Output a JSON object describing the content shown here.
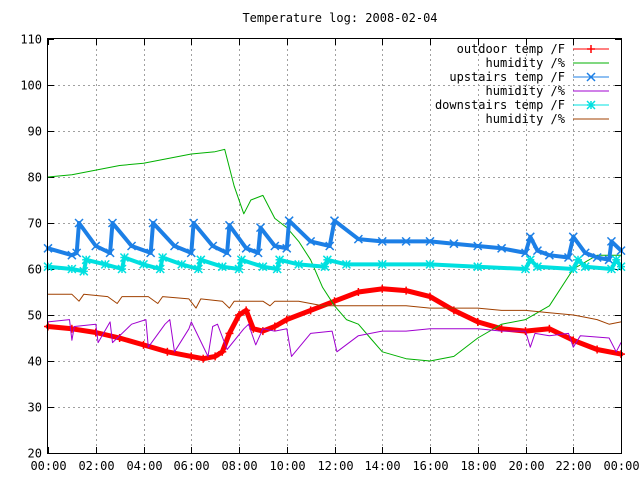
{
  "chart_data": {
    "type": "line",
    "title": "Temperature log: 2008-02-04",
    "xlabel": "",
    "ylabel": "",
    "xlim": [
      0,
      24
    ],
    "ylim": [
      20,
      110
    ],
    "grid": true,
    "legend_position": "top-right",
    "x_tick_labels": [
      "00:00",
      "02:00",
      "04:00",
      "06:00",
      "08:00",
      "10:00",
      "12:00",
      "14:00",
      "16:00",
      "18:00",
      "20:00",
      "22:00",
      "00:00"
    ],
    "x_ticks": [
      0,
      2,
      4,
      6,
      8,
      10,
      12,
      14,
      16,
      18,
      20,
      22,
      24
    ],
    "y_ticks": [
      20,
      30,
      40,
      50,
      60,
      70,
      80,
      90,
      100,
      110
    ],
    "series": [
      {
        "name": "outdoor temp /F",
        "color": "#ff0000",
        "marker": "plus",
        "width": 5,
        "x": [
          0,
          1,
          2,
          3,
          4,
          5,
          6,
          6.5,
          7,
          7.3,
          7.6,
          8.0,
          8.3,
          8.6,
          9,
          9.5,
          10,
          11,
          12,
          13,
          14,
          15,
          16,
          17,
          18,
          19,
          20,
          21,
          22,
          23,
          24
        ],
        "y": [
          47.5,
          47,
          46.2,
          45,
          43.5,
          42,
          41,
          40.5,
          41,
          42,
          46,
          50,
          51,
          47,
          46.5,
          47.5,
          49,
          51,
          53,
          55,
          55.7,
          55.3,
          54,
          51,
          48.5,
          47,
          46.5,
          47,
          44.5,
          42.5,
          41.5
        ]
      },
      {
        "name": "humidity /%",
        "color": "#00b000",
        "marker": "none",
        "width": 1,
        "x": [
          0,
          1,
          2,
          3,
          4,
          5,
          6,
          7,
          7.4,
          7.8,
          8.2,
          8.5,
          9,
          9.5,
          10,
          10.5,
          11,
          11.5,
          12,
          12.5,
          13,
          13.5,
          14,
          15,
          16,
          17,
          18,
          19,
          20,
          21,
          22,
          23,
          24
        ],
        "y": [
          80,
          80.5,
          81.5,
          82.5,
          83,
          84,
          85,
          85.5,
          86,
          78,
          72,
          75,
          76,
          71,
          69,
          66,
          62,
          56,
          52,
          49,
          48,
          45,
          42,
          40.5,
          40,
          41,
          45,
          48,
          49,
          52,
          60,
          63,
          63
        ]
      },
      {
        "name": "upstairs temp /F",
        "color": "#1c7fe6",
        "marker": "cross",
        "width": 4,
        "x": [
          0,
          1,
          1.2,
          1.3,
          2,
          2.6,
          2.7,
          3.5,
          4.3,
          4.4,
          5.3,
          6,
          6.1,
          6.9,
          7.5,
          7.6,
          8.3,
          8.8,
          8.9,
          9.5,
          10,
          10.1,
          11,
          11.8,
          12,
          13,
          14,
          15,
          16,
          17,
          18,
          19,
          20,
          20.2,
          20.5,
          21,
          21.8,
          22,
          22.5,
          23,
          23.5,
          23.6,
          24
        ],
        "y": [
          64.5,
          63,
          63.5,
          70,
          65,
          63.5,
          70,
          65,
          63.5,
          70,
          65,
          63.5,
          70,
          65,
          63.5,
          69.5,
          64.5,
          63.5,
          69,
          65,
          64.5,
          70.5,
          66,
          65,
          70.5,
          66.5,
          66,
          66,
          66,
          65.5,
          65,
          64.5,
          63.5,
          67,
          64,
          63,
          62.5,
          67,
          63.5,
          62.5,
          62,
          66,
          64
        ]
      },
      {
        "name": "humidity /%",
        "color": "#a000d0",
        "marker": "none",
        "width": 1,
        "x": [
          0,
          0.9,
          1.0,
          1.1,
          2.0,
          2.1,
          2.6,
          2.7,
          3.5,
          4.1,
          4.2,
          4.9,
          5.1,
          5.3,
          5.9,
          6.0,
          6.7,
          6.9,
          7.1,
          7.5,
          8.2,
          8.4,
          8.7,
          9.0,
          9.5,
          10.0,
          10.2,
          11.0,
          11.9,
          12.1,
          13,
          14,
          15,
          16,
          17,
          18,
          19,
          20,
          20.2,
          20.4,
          21,
          21.8,
          22,
          22.3,
          23.5,
          23.8,
          24
        ],
        "y": [
          48.5,
          49,
          44.5,
          47.5,
          48,
          44,
          48.5,
          44,
          48,
          49,
          43,
          48,
          49,
          42,
          47,
          48.5,
          41,
          47.5,
          48,
          42.5,
          47,
          48,
          43.5,
          47,
          46.5,
          47,
          41,
          46,
          46.5,
          42,
          45.5,
          46.5,
          46.5,
          47,
          47,
          47,
          46.5,
          46.5,
          43,
          46,
          45.5,
          46,
          43,
          45.5,
          45,
          42,
          44
        ]
      },
      {
        "name": "downstairs temp /F",
        "color": "#00e0e0",
        "marker": "star",
        "width": 4,
        "x": [
          0,
          1,
          1.5,
          1.6,
          2.4,
          3.1,
          3.2,
          4.0,
          4.7,
          4.8,
          5.6,
          6.3,
          6.4,
          7.3,
          8.0,
          8.1,
          9.0,
          9.6,
          9.7,
          10.5,
          11.6,
          11.7,
          12.5,
          14,
          16,
          18,
          20,
          20.2,
          20.5,
          22,
          22.2,
          22.5,
          23.6,
          23.8,
          24
        ],
        "y": [
          60.5,
          60,
          59.5,
          62,
          61,
          60,
          62.5,
          61,
          60,
          62.5,
          61,
          60,
          62,
          60.5,
          60,
          62,
          60.5,
          60,
          62,
          61,
          60.5,
          62,
          61,
          61,
          61,
          60.5,
          60,
          62,
          60.5,
          60,
          62,
          60.5,
          60,
          62,
          60.5
        ]
      },
      {
        "name": "humidity /%",
        "color": "#a04000",
        "marker": "none",
        "width": 1,
        "x": [
          0,
          1,
          1.3,
          1.5,
          2.5,
          2.9,
          3.1,
          4.2,
          4.6,
          4.8,
          5.9,
          6.2,
          6.4,
          7.3,
          7.6,
          7.8,
          9.0,
          9.3,
          9.5,
          10.5,
          11,
          11.5,
          12,
          13,
          14,
          15,
          16,
          17,
          18,
          19,
          20,
          21,
          22,
          22.5,
          23,
          23.5,
          24
        ],
        "y": [
          54.5,
          54.5,
          53,
          54.5,
          54,
          52.5,
          54,
          54,
          52.5,
          54,
          53.5,
          51.5,
          53.5,
          53,
          51.5,
          53,
          53,
          52,
          53,
          53,
          52.5,
          52,
          52,
          52,
          52,
          52,
          51.5,
          51.5,
          51.5,
          51,
          51,
          50.5,
          50,
          49.5,
          49,
          48,
          48.5
        ]
      }
    ]
  }
}
